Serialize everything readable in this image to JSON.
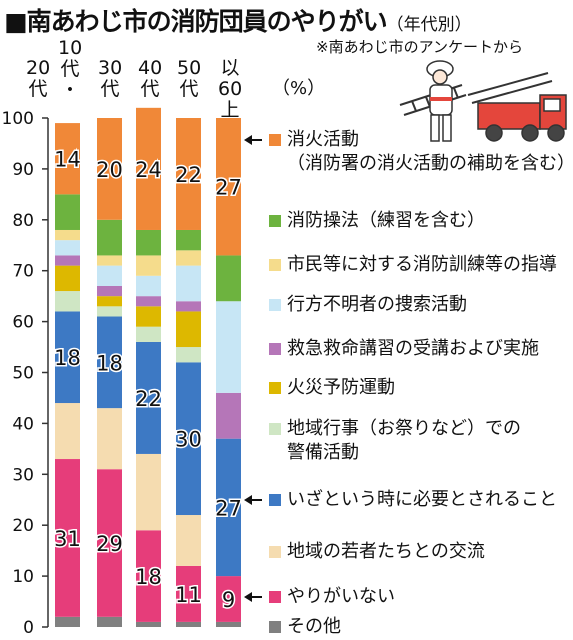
{
  "title": "■南あわじ市の消防団員のやりがい",
  "subtitle": "（年代別）",
  "source_note": "※南あわじ市のアンケートから",
  "chart_data": {
    "type": "bar",
    "stacked": true,
    "unit_label": "（%）",
    "categories": [
      [
        "20",
        "代"
      ],
      [
        "10",
        "代",
        "・"
      ],
      [
        "30",
        "代"
      ],
      [
        "40",
        "代"
      ],
      [
        "50",
        "代"
      ],
      [
        "以60",
        "上代"
      ]
    ],
    "ylim": [
      0,
      100
    ],
    "yticks": [
      0,
      10,
      20,
      30,
      40,
      50,
      60,
      70,
      80,
      90,
      100
    ],
    "series": [
      {
        "key": "other",
        "name": "その他",
        "color": "#808080",
        "values": [
          2,
          2,
          1,
          1,
          1,
          1
        ]
      },
      {
        "key": "noreward",
        "name": "やりがいない",
        "color": "#e63d7a",
        "values": [
          31,
          29,
          18,
          11,
          9,
          0
        ]
      },
      {
        "key": "youth",
        "name": "地域の若者たちとの交流",
        "color": "#f5dcb0",
        "values": [
          11,
          12,
          15,
          10,
          0,
          0
        ]
      },
      {
        "key": "needed",
        "name": "いざという時に必要とされること",
        "color": "#3d79c4",
        "values": [
          18,
          18,
          22,
          30,
          27,
          0
        ]
      },
      {
        "key": "festival",
        "name": [
          "地域行事（お祭りなど）での",
          "警備活動"
        ],
        "color": "#cfe6c4",
        "values": [
          4,
          2,
          3,
          3,
          0,
          0
        ]
      },
      {
        "key": "fireprev",
        "name": "火災予防運動",
        "color": "#ddb800",
        "values": [
          5,
          2,
          4,
          7,
          0,
          0
        ]
      },
      {
        "key": "firstaid",
        "name": "救急救命講習の受講および実施",
        "color": "#b576b8",
        "values": [
          2,
          2,
          2,
          2,
          9,
          0
        ]
      },
      {
        "key": "search",
        "name": "行方不明者の捜索活動",
        "color": "#c7e6f5",
        "values": [
          3,
          4,
          4,
          7,
          18,
          0
        ]
      },
      {
        "key": "training",
        "name": "市民等に対する消防訓練等の指導",
        "color": "#f5dc8c",
        "values": [
          2,
          2,
          4,
          3,
          0,
          0
        ]
      },
      {
        "key": "drill",
        "name": "消防操法（練習を含む）",
        "color": "#6db33f",
        "values": [
          7,
          7,
          5,
          4,
          9,
          0
        ]
      },
      {
        "key": "fire",
        "name": [
          "消火活動",
          "（消防署の消火活動の補助を含む）"
        ],
        "color": "#f08838",
        "values": [
          14,
          20,
          24,
          22,
          27,
          0
        ]
      }
    ],
    "data_labels": {
      "fire": [
        "14",
        "20",
        "24",
        "22",
        "27",
        ""
      ],
      "needed": [
        "18",
        "18",
        "22",
        "30",
        "27",
        ""
      ],
      "noreward": [
        "31",
        "29",
        "18",
        "11",
        "9",
        ""
      ]
    }
  }
}
